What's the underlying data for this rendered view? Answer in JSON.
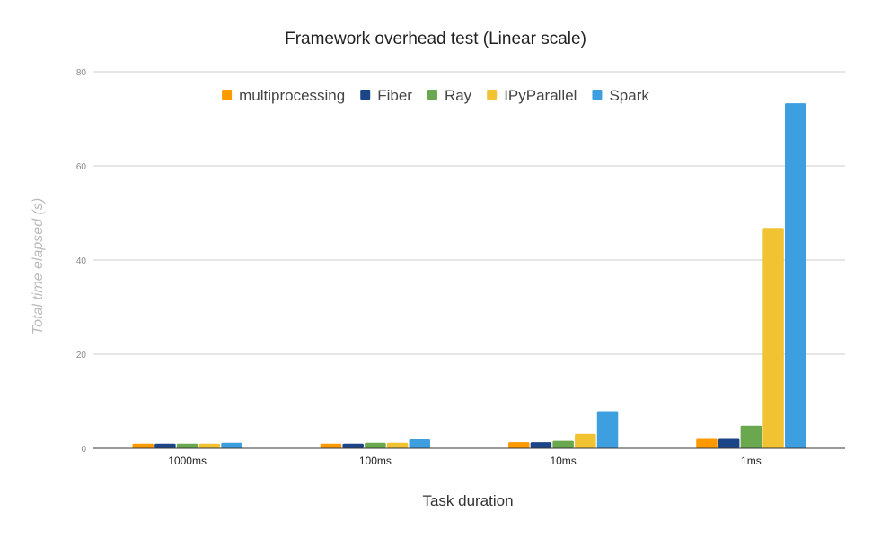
{
  "chart_data": {
    "type": "bar",
    "title": "Framework overhead test (Linear scale)",
    "xlabel": "Task duration",
    "ylabel": "Total time elapsed (s)",
    "categories": [
      "1000ms",
      "100ms",
      "10ms",
      "1ms"
    ],
    "ylim": [
      0,
      80
    ],
    "yticks": [
      "0",
      "20",
      "40",
      "60",
      "80"
    ],
    "legend_position": "top",
    "grid": true,
    "series": [
      {
        "name": "multiprocessing",
        "color": "#ff9900",
        "values": [
          1.0,
          1.0,
          1.3,
          2.0
        ]
      },
      {
        "name": "Fiber",
        "color": "#1c4587",
        "values": [
          1.0,
          1.0,
          1.3,
          2.0
        ]
      },
      {
        "name": "Ray",
        "color": "#6aa84f",
        "values": [
          1.0,
          1.2,
          1.6,
          4.8
        ]
      },
      {
        "name": "IPyParallel",
        "color": "#f1c232",
        "values": [
          1.0,
          1.2,
          3.1,
          46.8
        ]
      },
      {
        "name": "Spark",
        "color": "#3d9ee0",
        "values": [
          1.2,
          1.9,
          7.9,
          73.3
        ]
      }
    ]
  }
}
